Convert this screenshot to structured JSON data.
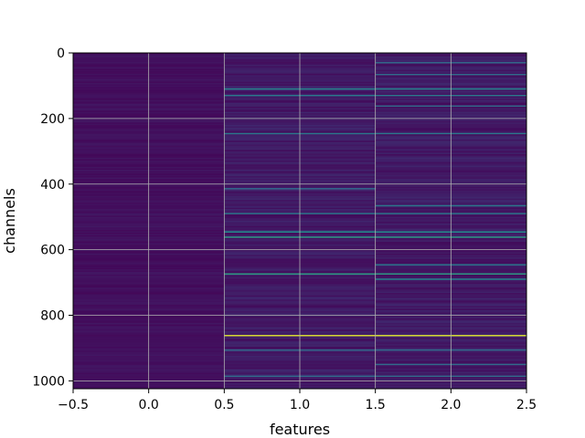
{
  "chart_data": {
    "type": "heatmap",
    "title": "",
    "xlabel": "features",
    "ylabel": "channels",
    "xlim": [
      -0.5,
      2.5
    ],
    "ylim": [
      1024,
      0
    ],
    "x_ticks": [
      -0.5,
      0.0,
      0.5,
      1.0,
      1.5,
      2.0,
      2.5
    ],
    "x_tick_labels": [
      "−0.5",
      "0.0",
      "0.5",
      "1.0",
      "1.5",
      "2.0",
      "2.5"
    ],
    "y_ticks": [
      0,
      200,
      400,
      600,
      800,
      1000
    ],
    "y_tick_labels": [
      "0",
      "200",
      "400",
      "600",
      "800",
      "1000"
    ],
    "grid": true,
    "colormap": "viridis",
    "n_rows": 1024,
    "n_cols": 3,
    "base_color": "#440154",
    "bright_rows": [
      {
        "col": 1,
        "rows": [
          110,
          130,
          245,
          415,
          490,
          545,
          560,
          675,
          860,
          905,
          985
        ]
      },
      {
        "col": 2,
        "rows": [
          30,
          65,
          110,
          130,
          160,
          245,
          465,
          490,
          545,
          560,
          645,
          675,
          690,
          860,
          905,
          950,
          985
        ]
      }
    ],
    "bright_values": {
      "110": 0.45,
      "130": 0.4,
      "245": 0.4,
      "415": 0.35,
      "490": 0.4,
      "545": 0.5,
      "560": 0.55,
      "675": 0.55,
      "690": 0.45,
      "860": 0.95,
      "905": 0.35,
      "985": 0.35,
      "30": 0.35,
      "65": 0.35,
      "160": 0.35,
      "465": 0.4,
      "645": 0.4,
      "950": 0.35
    }
  }
}
